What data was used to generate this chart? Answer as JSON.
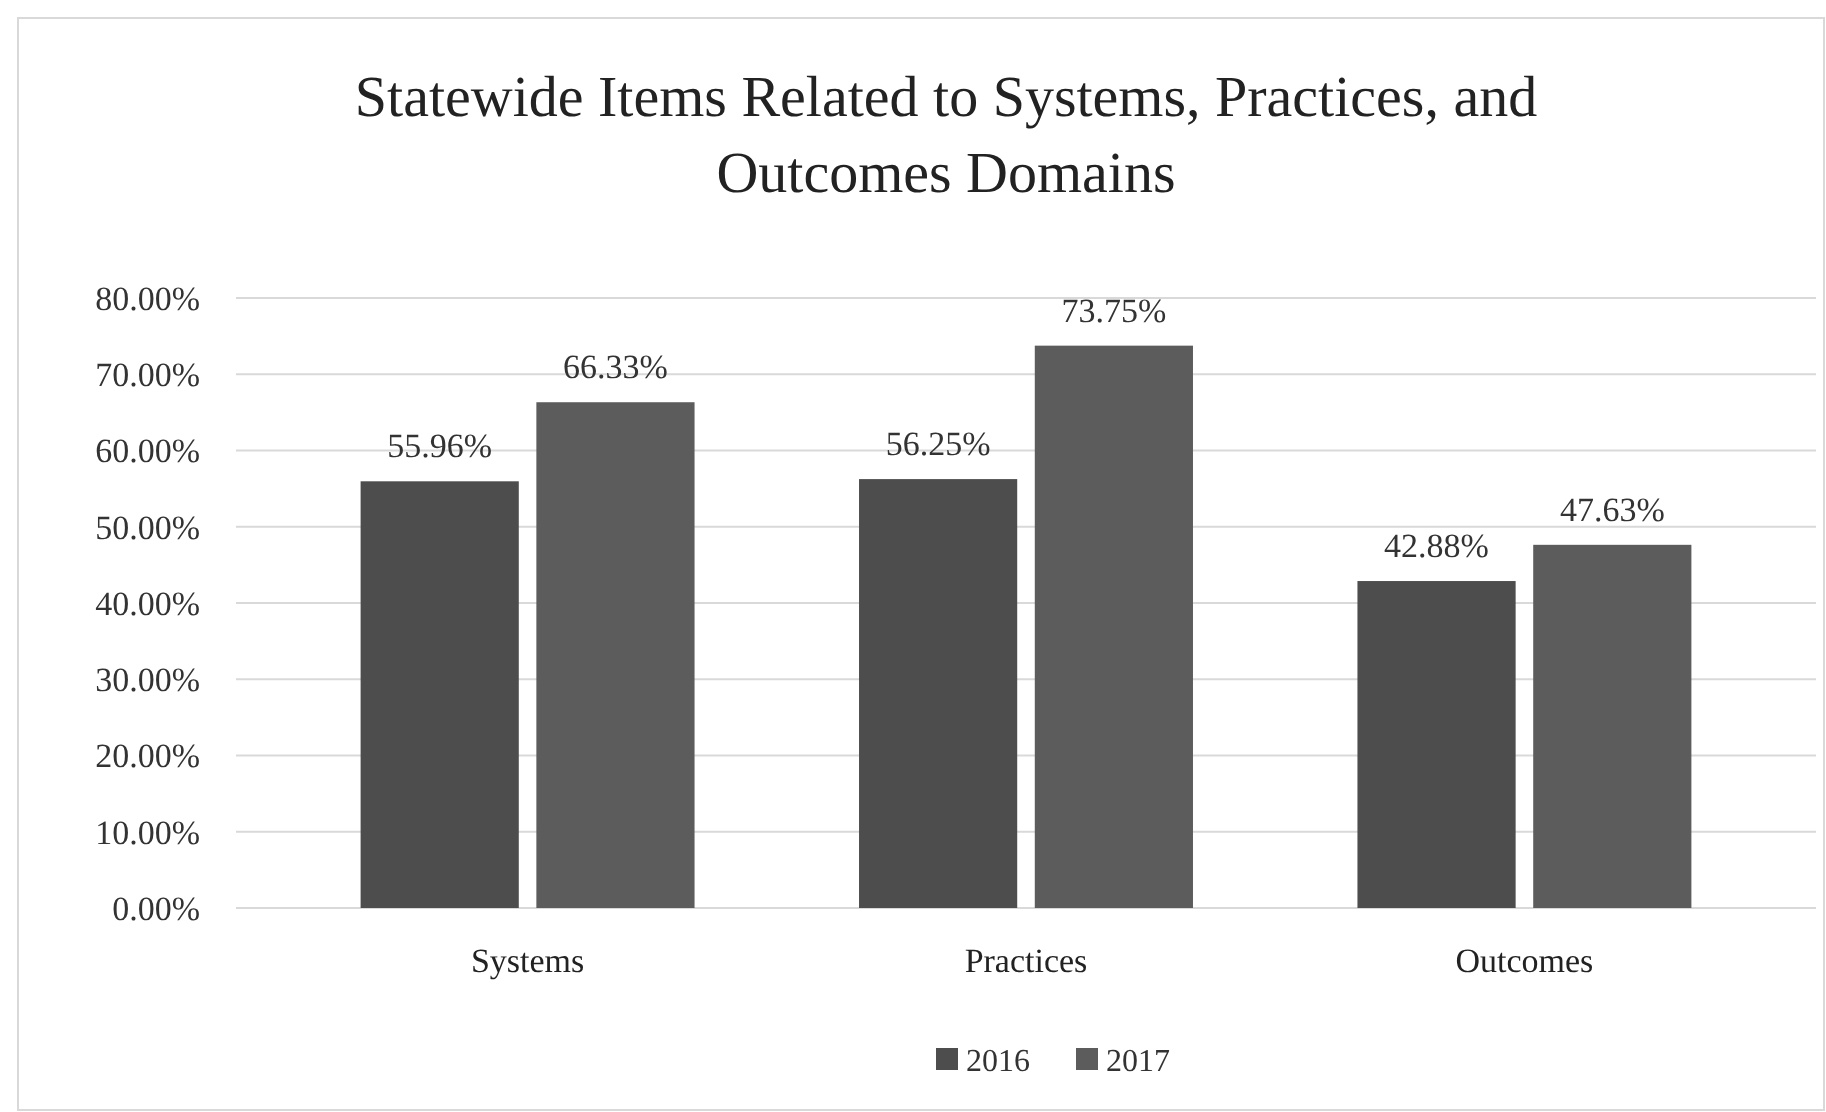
{
  "chart_data": {
    "type": "bar",
    "title": "Statewide Items Related to Systems, Practices, and Outcomes Domains",
    "categories": [
      "Systems",
      "Practices",
      "Outcomes"
    ],
    "series": [
      {
        "name": "2016",
        "color": "#4d4d4d",
        "values": [
          55.96,
          56.25,
          42.88
        ],
        "value_labels": [
          "55.96%",
          "56.25%",
          "42.88%"
        ]
      },
      {
        "name": "2017",
        "color": "#5c5c5c",
        "values": [
          66.33,
          73.75,
          47.63
        ],
        "value_labels": [
          "66.33%",
          "73.75%",
          "47.63%"
        ]
      }
    ],
    "ylim": [
      0,
      80
    ],
    "yticks": [
      {
        "value": 0,
        "label": "0.00%"
      },
      {
        "value": 10,
        "label": "10.00%"
      },
      {
        "value": 20,
        "label": "20.00%"
      },
      {
        "value": 30,
        "label": "30.00%"
      },
      {
        "value": 40,
        "label": "40.00%"
      },
      {
        "value": 50,
        "label": "50.00%"
      },
      {
        "value": 60,
        "label": "60.00%"
      },
      {
        "value": 70,
        "label": "70.00%"
      },
      {
        "value": 80,
        "label": "80.00%"
      }
    ],
    "grid": "y",
    "legend": "bottom"
  }
}
